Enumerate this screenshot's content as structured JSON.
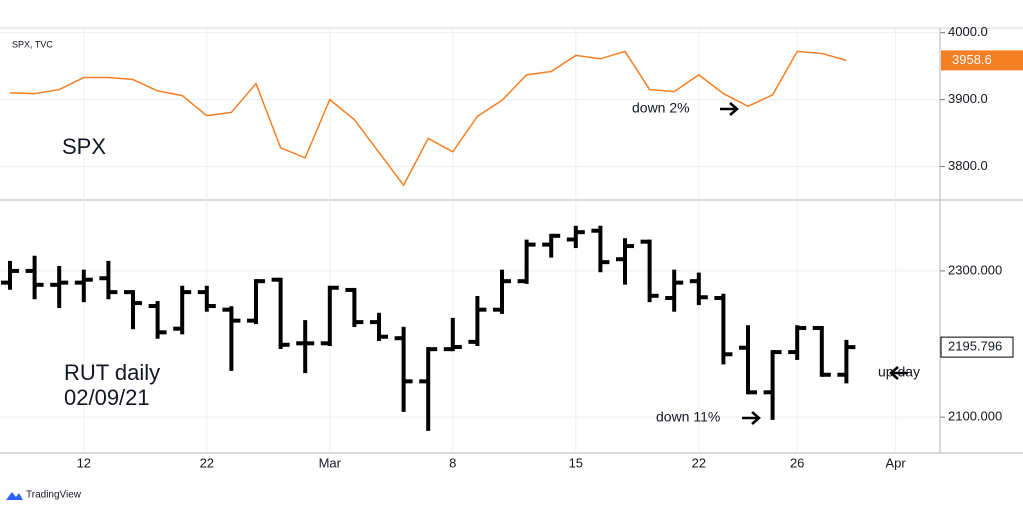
{
  "chart_data": [
    {
      "type": "line",
      "series": [
        {
          "name": "SPX, TVC",
          "color": "#f57f24",
          "values": [
            3910,
            3909,
            3915,
            3933,
            3933,
            3930,
            3913,
            3906,
            3876,
            3881,
            3924,
            3828,
            3813,
            3900,
            3870,
            3821,
            3772,
            3842,
            3822,
            3875,
            3899,
            3937,
            3942,
            3966,
            3961,
            3972,
            3915,
            3912,
            3937,
            3909,
            3890,
            3907,
            3972,
            3969,
            3958.6,
            null,
            null
          ]
        }
      ],
      "ylim": [
        3750,
        4007
      ],
      "yticks": [
        {
          "value": 3800,
          "label": "3800.0"
        },
        {
          "value": 3900,
          "label": "3900.0"
        },
        {
          "value": 4000,
          "label": "4000.0"
        }
      ],
      "grid": true,
      "annotations": [
        "SPX",
        "down 2%"
      ]
    },
    {
      "type": "ohlc",
      "categories": [
        null,
        null,
        null,
        "12",
        null,
        null,
        null,
        null,
        "22",
        null,
        null,
        null,
        null,
        "Mar",
        null,
        null,
        null,
        null,
        "8",
        null,
        null,
        null,
        null,
        "15",
        null,
        null,
        null,
        null,
        "22",
        null,
        null,
        null,
        "26",
        null,
        null,
        null,
        "Apr"
      ],
      "series": [
        {
          "name": "RUT",
          "color": "#000000",
          "open": [
            2284,
            2300,
            2281,
            2284,
            2290,
            2271,
            2252,
            2221,
            2271,
            2247,
            2232,
            2288,
            2201,
            2201,
            2274,
            2230,
            2208,
            2149,
            2193,
            2203,
            2247,
            2286,
            2336,
            2343,
            2355,
            2316,
            2340,
            2263,
            2286,
            2263,
            2195,
            2134,
            2189,
            2222,
            2158,
            null,
            null
          ],
          "high": [
            2311,
            2318,
            2304,
            2299,
            2311,
            2271,
            2256,
            2277,
            2277,
            2249,
            2286,
            2288,
            2230,
            2277,
            2274,
            2240,
            2221,
            2193,
            2233,
            2263,
            2299,
            2340,
            2348,
            2359,
            2359,
            2342,
            2340,
            2299,
            2295,
            2266,
            2223,
            2189,
            2223,
            2222,
            2203,
            null,
            null
          ],
          "low": [
            2277,
            2264,
            2252,
            2260,
            2264,
            2223,
            2210,
            2216,
            2247,
            2166,
            2230,
            2196,
            2163,
            2200,
            2226,
            2207,
            2110,
            2084,
            2193,
            2200,
            2244,
            2285,
            2321,
            2334,
            2301,
            2284,
            2260,
            2247,
            2256,
            2175,
            2134,
            2099,
            2181,
            2158,
            2149,
            null,
            null
          ],
          "close": [
            2300,
            2281,
            2284,
            2288,
            2271,
            2256,
            2216,
            2271,
            2252,
            2232,
            2286,
            2199,
            2201,
            2277,
            2230,
            2210,
            2149,
            2193,
            2196,
            2247,
            2286,
            2336,
            2348,
            2353,
            2312,
            2334,
            2266,
            2284,
            2264,
            2186,
            2134,
            2189,
            2222,
            2158,
            2195.796,
            null,
            null
          ]
        }
      ],
      "ylim": [
        2051,
        2397
      ],
      "yticks": [
        {
          "value": 2100,
          "label": "2100.000"
        },
        {
          "value": 2300,
          "label": "2300.000"
        }
      ],
      "grid": true,
      "annotations": [
        "RUT daily",
        "02/09/21",
        "down 11%",
        "up day"
      ]
    }
  ],
  "footer": "TradingView"
}
